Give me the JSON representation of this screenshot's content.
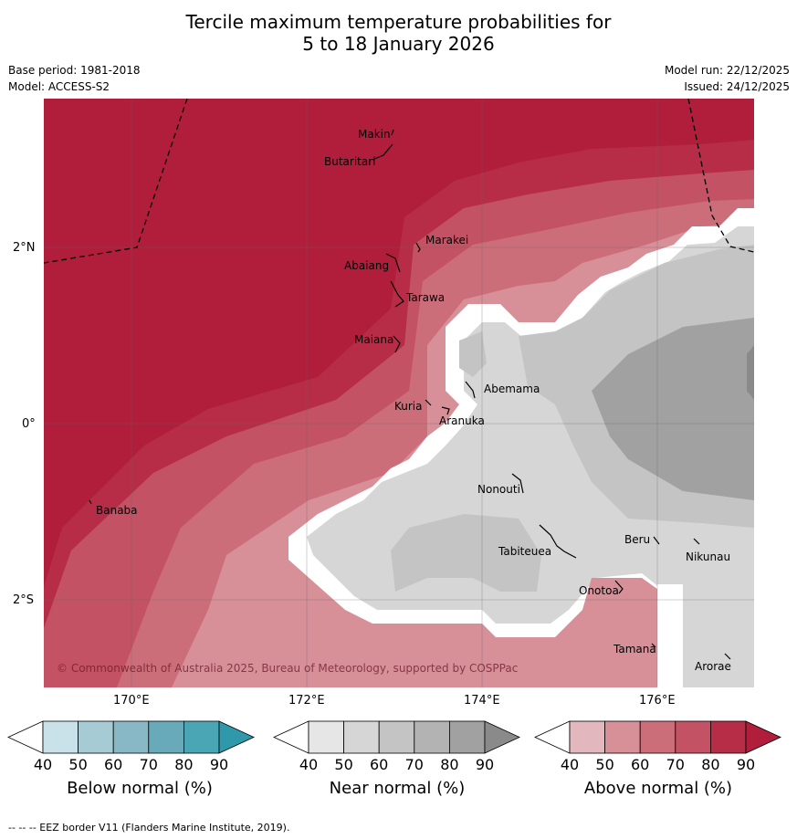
{
  "title_line1": "Tercile maximum temperature probabilities for",
  "title_line2": "5 to 18 January 2026",
  "base_period": "Base period: 1981-2018",
  "model": "Model: ACCESS-S2",
  "model_run": "Model run: 22/12/2025",
  "issued": "Issued: 24/12/2025",
  "lat_labels": [
    "2°N",
    "0°",
    "2°S"
  ],
  "lon_labels": [
    "170°E",
    "172°E",
    "174°E",
    "176°E"
  ],
  "places": {
    "makin": "Makin",
    "butaritari": "Butaritari",
    "marakei": "Marakei",
    "abaiang": "Abaiang",
    "tarawa": "Tarawa",
    "maiana": "Maiana",
    "abemama": "Abemama",
    "kuria": "Kuria",
    "aranuka": "Aranuka",
    "banaba": "Banaba",
    "nonouti": "Nonouti",
    "beru": "Beru",
    "nikunau": "Nikunau",
    "tabiteuea": "Tabiteuea",
    "onotoa": "Onotoa",
    "tamana": "Tamana",
    "arorae": "Arorae"
  },
  "copyright": "© Commonwealth of Australia 2025, Bureau of Meteorology, supported by COSPPac",
  "colorbars": {
    "below": {
      "label": "Below normal (%)",
      "colors": [
        "#ffffff",
        "#c9e2ea",
        "#a6cbd4",
        "#88b8c5",
        "#68a9ba",
        "#4aa5b5",
        "#2f98ab"
      ]
    },
    "near": {
      "label": "Near normal (%)",
      "colors": [
        "#ffffff",
        "#e6e6e6",
        "#d6d6d6",
        "#c4c4c4",
        "#b3b3b3",
        "#a1a1a1",
        "#8a8a8a"
      ]
    },
    "above": {
      "label": "Above normal (%)",
      "colors": [
        "#ffffff",
        "#e3b7be",
        "#d78f98",
        "#cc6e7a",
        "#c35264",
        "#b72d47",
        "#b01e3c"
      ]
    },
    "ticks": [
      "40",
      "50",
      "60",
      "70",
      "80",
      "90"
    ]
  },
  "footer": "--  --  -- EEZ border V11 (Flanders Marine Institute, 2019)."
}
